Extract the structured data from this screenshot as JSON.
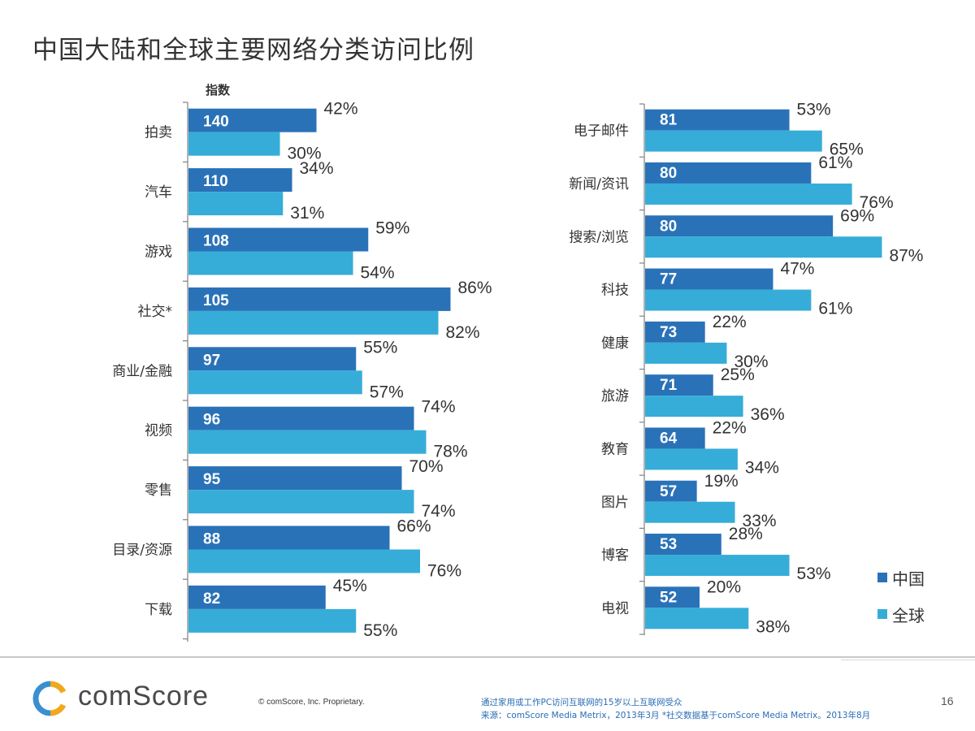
{
  "title": "中国大陆和全球主要网络分类访问比例",
  "colors": {
    "china": "#2a72b8",
    "global": "#36add8",
    "axis": "#808080"
  },
  "chart_data": [
    {
      "type": "bar",
      "orientation": "horizontal",
      "index_header": "指数",
      "categories": [
        "拍卖",
        "汽车",
        "游戏",
        "社交*",
        "商业/金融",
        "视频",
        "零售",
        "目录/资源",
        "下载"
      ],
      "index": [
        140,
        110,
        108,
        105,
        97,
        96,
        95,
        88,
        82
      ],
      "series": [
        {
          "name": "中国",
          "values": [
            42,
            34,
            59,
            86,
            55,
            74,
            70,
            66,
            45
          ]
        },
        {
          "name": "全球",
          "values": [
            30,
            31,
            54,
            82,
            57,
            78,
            74,
            76,
            55
          ]
        }
      ],
      "unit": "%"
    },
    {
      "type": "bar",
      "orientation": "horizontal",
      "categories": [
        "电子邮件",
        "新闻/资讯",
        "搜索/浏览",
        "科技",
        "健康",
        "旅游",
        "教育",
        "图片",
        "博客",
        "电视"
      ],
      "index": [
        81,
        80,
        80,
        77,
        73,
        71,
        64,
        57,
        53,
        52
      ],
      "series": [
        {
          "name": "中国",
          "values": [
            53,
            61,
            69,
            47,
            22,
            25,
            22,
            19,
            28,
            20
          ]
        },
        {
          "name": "全球",
          "values": [
            65,
            76,
            87,
            61,
            30,
            36,
            34,
            33,
            53,
            38
          ]
        }
      ],
      "unit": "%"
    }
  ],
  "legend": [
    {
      "label": "中国",
      "series": "china"
    },
    {
      "label": "全球",
      "series": "global"
    }
  ],
  "footer": {
    "logo_text": "comScore",
    "copyright": "© comScore, Inc.    Proprietary.",
    "source_line1": "通过家用或工作PC访问互联网的15岁以上互联网受众",
    "source_line2": "来源：comScore Media Metrix，2013年3月 *社交数据基于comScore Media Metrix。2013年8月",
    "page_number": "16"
  }
}
